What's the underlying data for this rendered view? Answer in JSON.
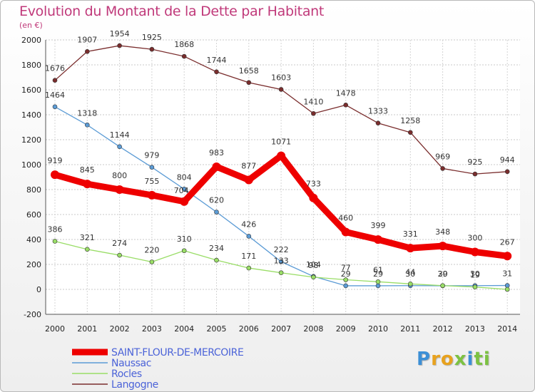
{
  "chart_data": {
    "type": "line",
    "title": "Evolution du Montant de la Dette par Habitant",
    "subtitle": "(en €)",
    "xlabel": "",
    "ylabel": "",
    "x": [
      "2000",
      "2001",
      "2002",
      "2003",
      "2004",
      "2005",
      "2006",
      "2007",
      "2008",
      "2009",
      "2010",
      "2011",
      "2012",
      "2013",
      "2014"
    ],
    "yticks": [
      "-200",
      "0",
      "200",
      "400",
      "600",
      "800",
      "1000",
      "1200",
      "1400",
      "1600",
      "1800",
      "2000"
    ],
    "ylim": [
      -200,
      2000
    ],
    "grid": true,
    "legend_position": "bottom-left",
    "series": [
      {
        "name": "SAINT-FLOUR-DE-MERCOIRE",
        "color": "#ee0000",
        "emphasis": true,
        "values": [
          919,
          845,
          800,
          755,
          704,
          983,
          877,
          1071,
          733,
          460,
          399,
          331,
          348,
          300,
          267
        ],
        "labels": [
          "919",
          "845",
          "800",
          "755",
          "",
          "983",
          "877",
          "1071",
          "733",
          "460",
          "399",
          "331",
          "348",
          "300",
          "267"
        ]
      },
      {
        "name": "Naussac",
        "color": "#5b9bd5",
        "values": [
          1464,
          1318,
          1144,
          979,
          804,
          620,
          426,
          222,
          104,
          29,
          29,
          30,
          29,
          30,
          31
        ],
        "labels": [
          "1464",
          "1318",
          "1144",
          "979",
          "804",
          "620",
          "426",
          "222",
          "104",
          "29",
          "29",
          "30",
          "29",
          "30",
          "31"
        ]
      },
      {
        "name": "Rocles",
        "color": "#99dd66",
        "values": [
          386,
          321,
          274,
          220,
          310,
          234,
          171,
          133,
          98,
          77,
          61,
          44,
          30,
          19,
          0
        ],
        "labels": [
          "386",
          "321",
          "274",
          "220",
          "310",
          "234",
          "171",
          "133",
          "98",
          "77",
          "61",
          "44",
          "30",
          "19",
          ""
        ]
      },
      {
        "name": "Langogne",
        "color": "#7a2d2d",
        "values": [
          1676,
          1907,
          1954,
          1925,
          1868,
          1744,
          1658,
          1603,
          1410,
          1478,
          1333,
          1258,
          969,
          925,
          944
        ],
        "labels": [
          "1676",
          "1907",
          "1954",
          "1925",
          "1868",
          "1744",
          "1658",
          "1603",
          "1410",
          "1478",
          "1333",
          "1258",
          "969",
          "925",
          "944"
        ]
      }
    ],
    "point_label_704": "704"
  },
  "logo": {
    "letters": [
      "P",
      "r",
      "o",
      "x",
      "i",
      "t",
      "i"
    ],
    "colors": [
      "#3c8fd6",
      "#e8a21e",
      "#e8a21e",
      "#7cc242",
      "#3c8fd6",
      "#7cc242",
      "#7cc242"
    ]
  }
}
